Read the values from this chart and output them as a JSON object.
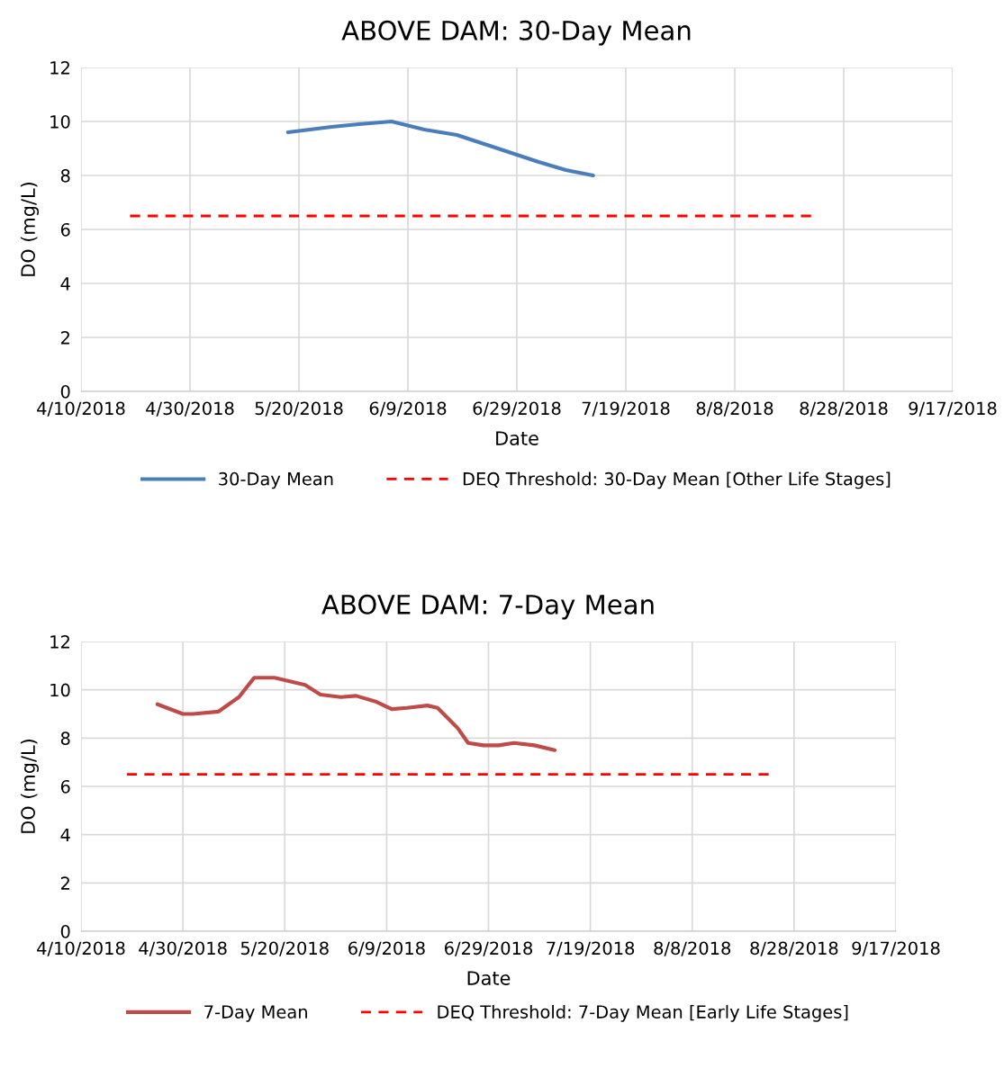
{
  "chart_data": [
    {
      "type": "line",
      "title": "ABOVE DAM: 30-Day Mean",
      "xlabel": "Date",
      "ylabel": "DO (mg/L)",
      "xlim": [
        "2018-04-10",
        "2018-09-17"
      ],
      "xticks": [
        {
          "value": "2018-04-10",
          "label": "4/10/2018"
        },
        {
          "value": "2018-04-30",
          "label": "4/30/2018"
        },
        {
          "value": "2018-05-20",
          "label": "5/20/2018"
        },
        {
          "value": "2018-06-09",
          "label": "6/9/2018"
        },
        {
          "value": "2018-06-29",
          "label": "6/29/2018"
        },
        {
          "value": "2018-07-19",
          "label": "7/19/2018"
        },
        {
          "value": "2018-08-08",
          "label": "8/8/2018"
        },
        {
          "value": "2018-08-28",
          "label": "8/28/2018"
        },
        {
          "value": "2018-09-17",
          "label": "9/17/2018"
        }
      ],
      "ylim": [
        0,
        12
      ],
      "yticks": [
        0,
        2,
        4,
        6,
        8,
        10,
        12
      ],
      "grid": true,
      "legend": "bottom",
      "marker": "none",
      "series": [
        {
          "name": "30-Day Mean",
          "color": "#4a7ebb",
          "line_style": "solid",
          "x": [
            "2018-05-18",
            "2018-05-26",
            "2018-05-31",
            "2018-06-06",
            "2018-06-12",
            "2018-06-18",
            "2018-06-24",
            "2018-07-03",
            "2018-07-08",
            "2018-07-13"
          ],
          "values": [
            9.6,
            9.8,
            9.9,
            10.0,
            9.7,
            9.5,
            9.1,
            8.5,
            8.2,
            8.0
          ]
        },
        {
          "name": "DEQ Threshold: 30-Day Mean [Other Life Stages]",
          "color": "#ff0000",
          "line_style": "dashed",
          "x": [
            "2018-04-19",
            "2018-08-22"
          ],
          "values": [
            6.5,
            6.5
          ]
        }
      ]
    },
    {
      "type": "line",
      "title": "ABOVE DAM: 7-Day Mean",
      "xlabel": "Date",
      "ylabel": "DO (mg/L)",
      "xlim": [
        "2018-04-10",
        "2018-09-17"
      ],
      "xticks": [
        {
          "value": "2018-04-10",
          "label": "4/10/2018"
        },
        {
          "value": "2018-04-30",
          "label": "4/30/2018"
        },
        {
          "value": "2018-05-20",
          "label": "5/20/2018"
        },
        {
          "value": "2018-06-09",
          "label": "6/9/2018"
        },
        {
          "value": "2018-06-29",
          "label": "6/29/2018"
        },
        {
          "value": "2018-07-19",
          "label": "7/19/2018"
        },
        {
          "value": "2018-08-08",
          "label": "8/8/2018"
        },
        {
          "value": "2018-08-28",
          "label": "8/28/2018"
        },
        {
          "value": "2018-09-17",
          "label": "9/17/2018"
        }
      ],
      "ylim": [
        0,
        12
      ],
      "yticks": [
        0,
        2,
        4,
        6,
        8,
        10,
        12
      ],
      "grid": true,
      "legend": "bottom",
      "marker": "none",
      "series": [
        {
          "name": "7-Day Mean",
          "color": "#be4b48",
          "line_style": "solid",
          "x": [
            "2018-04-25",
            "2018-04-30",
            "2018-05-02",
            "2018-05-07",
            "2018-05-11",
            "2018-05-14",
            "2018-05-18",
            "2018-05-24",
            "2018-05-27",
            "2018-05-31",
            "2018-06-03",
            "2018-06-07",
            "2018-06-10",
            "2018-06-13",
            "2018-06-17",
            "2018-06-19",
            "2018-06-23",
            "2018-06-25",
            "2018-06-28",
            "2018-07-01",
            "2018-07-04",
            "2018-07-08",
            "2018-07-12"
          ],
          "values": [
            9.4,
            9.0,
            9.0,
            9.1,
            9.7,
            10.5,
            10.5,
            10.2,
            9.8,
            9.7,
            9.75,
            9.5,
            9.2,
            9.25,
            9.35,
            9.25,
            8.4,
            7.8,
            7.7,
            7.7,
            7.8,
            7.7,
            7.5
          ]
        },
        {
          "name": "DEQ Threshold: 7-Day Mean [Early Life Stages]",
          "color": "#ff0000",
          "line_style": "dashed",
          "x": [
            "2018-04-19",
            "2018-08-23"
          ],
          "values": [
            6.5,
            6.5
          ]
        }
      ]
    }
  ]
}
